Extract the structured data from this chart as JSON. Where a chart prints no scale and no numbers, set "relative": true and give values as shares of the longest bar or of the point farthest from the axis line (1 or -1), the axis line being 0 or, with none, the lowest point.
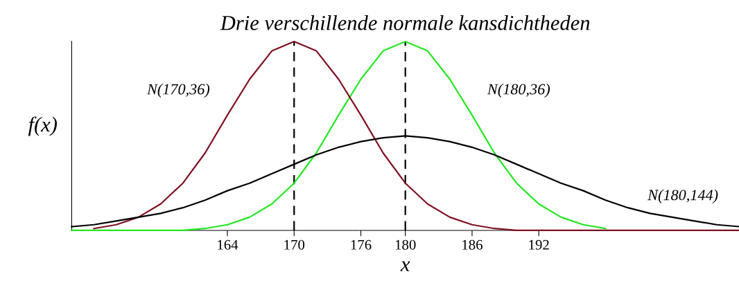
{
  "chart_data": {
    "type": "line",
    "title": "Drie verschillende normale kansdichtheden",
    "xlabel": "x",
    "ylabel": "f(x)",
    "relative": true,
    "x": [
      150,
      152,
      154,
      156,
      158,
      160,
      162,
      164,
      166,
      168,
      170,
      172,
      174,
      176,
      178,
      180,
      182,
      184,
      186,
      188,
      190,
      192,
      194,
      196,
      198,
      200,
      202,
      204,
      206,
      208,
      210
    ],
    "xlim": [
      150,
      210
    ],
    "xticks": [
      164,
      170,
      176,
      180,
      186,
      192
    ],
    "series": [
      {
        "color": "#7f1020",
        "values": [
          null,
          0.01,
          0.03,
          0.07,
          0.14,
          0.25,
          0.41,
          0.61,
          0.8,
          0.95,
          1,
          0.95,
          0.8,
          0.61,
          0.41,
          0.25,
          0.14,
          0.07,
          0.03,
          0.01,
          0,
          0,
          0,
          0,
          0,
          0,
          0,
          0,
          0,
          0,
          0
        ]
      },
      {
        "color": "#22e822",
        "values": [
          0,
          0,
          0,
          0,
          0,
          0,
          0.01,
          0.03,
          0.07,
          0.14,
          0.25,
          0.41,
          0.61,
          0.8,
          0.95,
          1,
          0.95,
          0.8,
          0.61,
          0.41,
          0.25,
          0.14,
          0.07,
          0.03,
          0.01,
          null,
          null,
          null,
          null,
          null,
          null
        ]
      },
      {
        "color": "#000000",
        "values": [
          0.02,
          0.03,
          0.05,
          0.07,
          0.09,
          0.12,
          0.16,
          0.21,
          0.25,
          0.3,
          0.35,
          0.4,
          0.44,
          0.47,
          0.49,
          0.5,
          0.49,
          0.47,
          0.44,
          0.4,
          0.35,
          0.3,
          0.25,
          0.21,
          0.16,
          0.12,
          0.09,
          0.07,
          0.05,
          0.03,
          0.02
        ]
      }
    ],
    "ref_lines": [
      {
        "axis": "x",
        "value": 170,
        "color": "#000000",
        "line_style": "dashed"
      },
      {
        "axis": "x",
        "value": 180,
        "color": "#000000",
        "line_style": "dashed"
      }
    ],
    "annotations": [
      "N(170,36)",
      "N(180,36)",
      "N(180,144)"
    ],
    "line_style": "solid",
    "marker": "none"
  }
}
